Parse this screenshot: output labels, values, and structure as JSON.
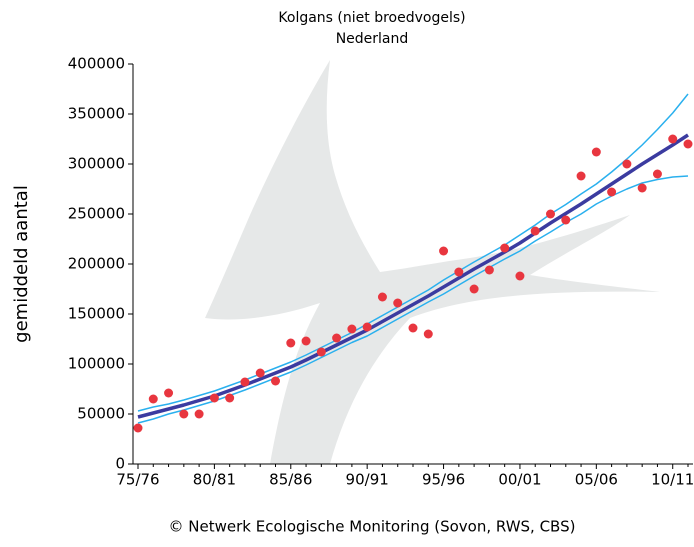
{
  "chart_data": {
    "type": "line",
    "title": "Kolgans (niet broedvogels)",
    "subtitle": "Nederland",
    "y_label": "gemiddeld aantal",
    "footer": "© Netwerk Ecologische Monitoring (Sovon, RWS, CBS)",
    "categories": [
      "75/76",
      null,
      null,
      null,
      null,
      "80/81",
      null,
      null,
      null,
      null,
      "85/86",
      null,
      null,
      null,
      null,
      "90/91",
      null,
      null,
      null,
      null,
      "95/96",
      null,
      null,
      null,
      null,
      "00/01",
      null,
      null,
      null,
      null,
      "05/06",
      null,
      null,
      null,
      null,
      "10/11",
      null
    ],
    "ylim": [
      0,
      400000
    ],
    "yticks": [
      0,
      50000,
      100000,
      150000,
      200000,
      250000,
      300000,
      350000,
      400000
    ],
    "series": [
      {
        "style": "line",
        "color": "#2ab0ee",
        "width": 1.5,
        "values": [
          53000,
          57000,
          60000,
          64000,
          68500,
          73000,
          78500,
          84000,
          90000,
          96000,
          102000,
          109000,
          116500,
          124000,
          131500,
          140000,
          148500,
          157000,
          165500,
          174000,
          184000,
          193000,
          202000,
          210500,
          219000,
          229000,
          239000,
          250000,
          259500,
          270000,
          280000,
          292000,
          305000,
          319000,
          334500,
          351000,
          370000
        ]
      },
      {
        "style": "line",
        "color": "#2ab0ee",
        "width": 1.5,
        "values": [
          41000,
          45000,
          50000,
          54000,
          58500,
          63000,
          68500,
          74000,
          80000,
          86000,
          92000,
          99000,
          106500,
          114000,
          121500,
          128000,
          136500,
          145000,
          153500,
          162000,
          170000,
          179000,
          188000,
          196500,
          205000,
          213000,
          223000,
          232000,
          241500,
          250000,
          260000,
          268000,
          275000,
          281000,
          284500,
          287000,
          288000
        ]
      },
      {
        "style": "line",
        "color": "#3b3ba0",
        "width": 3.5,
        "values": [
          47000,
          51000,
          55000,
          59000,
          63500,
          68000,
          73500,
          79000,
          85000,
          91000,
          97000,
          104000,
          111500,
          119000,
          126500,
          134000,
          142500,
          151000,
          159500,
          168000,
          177000,
          186000,
          195000,
          203500,
          212000,
          221000,
          231000,
          241000,
          250500,
          260000,
          270000,
          280000,
          290000,
          300000,
          309500,
          319000,
          329000
        ]
      },
      {
        "style": "markers",
        "color": "#e8363f",
        "values": [
          36000,
          65000,
          71000,
          50000,
          50000,
          66000,
          66000,
          82000,
          91000,
          83000,
          121000,
          123000,
          112000,
          126000,
          135000,
          137000,
          167000,
          161000,
          136000,
          130000,
          213000,
          192000,
          175000,
          194000,
          216000,
          188000,
          233000,
          250000,
          244000,
          288000,
          312000,
          272000,
          300000,
          276000,
          290000,
          325000,
          320000
        ]
      }
    ]
  }
}
